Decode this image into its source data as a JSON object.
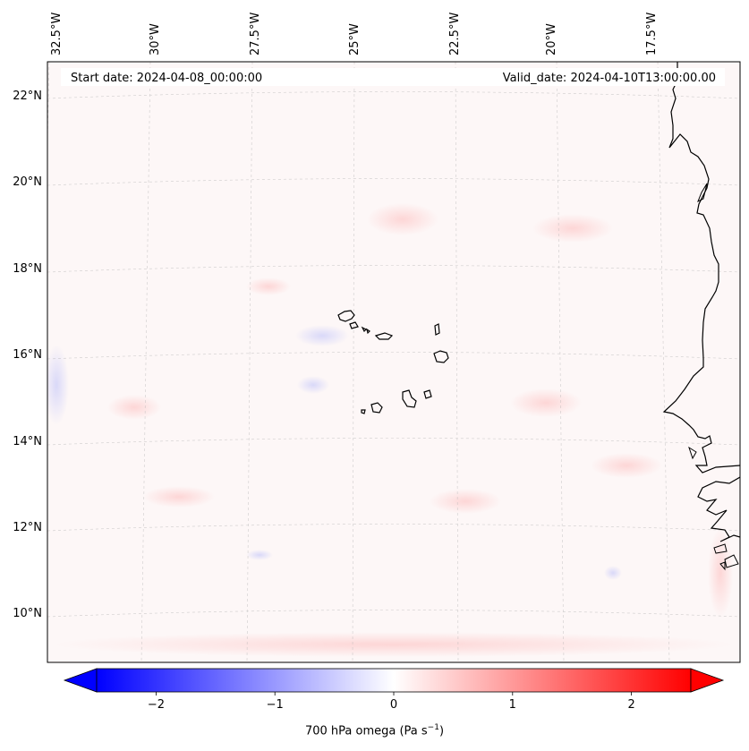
{
  "header": {
    "start_date": "Start date: 2024-04-08_00:00:00",
    "valid_date": "Valid_date: 2024-04-10T13:00:00.00"
  },
  "map": {
    "lon_labels": [
      "32.5°W",
      "30°W",
      "27.5°W",
      "25°W",
      "22.5°W",
      "20°W",
      "17.5°W"
    ],
    "lat_labels": [
      "22°N",
      "20°N",
      "18°N",
      "16°N",
      "14°N",
      "12°N",
      "10°N"
    ],
    "coastline_color": "#000000",
    "gridline_color": "#b0b0b0"
  },
  "colorbar": {
    "ticks": [
      "−2",
      "−1",
      "0",
      "1",
      "2"
    ],
    "tick_values": [
      -2,
      -1,
      0,
      1,
      2
    ],
    "vmin": -2.5,
    "vmax": 2.5,
    "low_color": "#0000ff",
    "mid_color": "#ffffff",
    "high_color": "#ff0000",
    "label_prefix": "700 hPa omega (Pa s",
    "label_exp": "−1",
    "label_suffix": ")"
  }
}
